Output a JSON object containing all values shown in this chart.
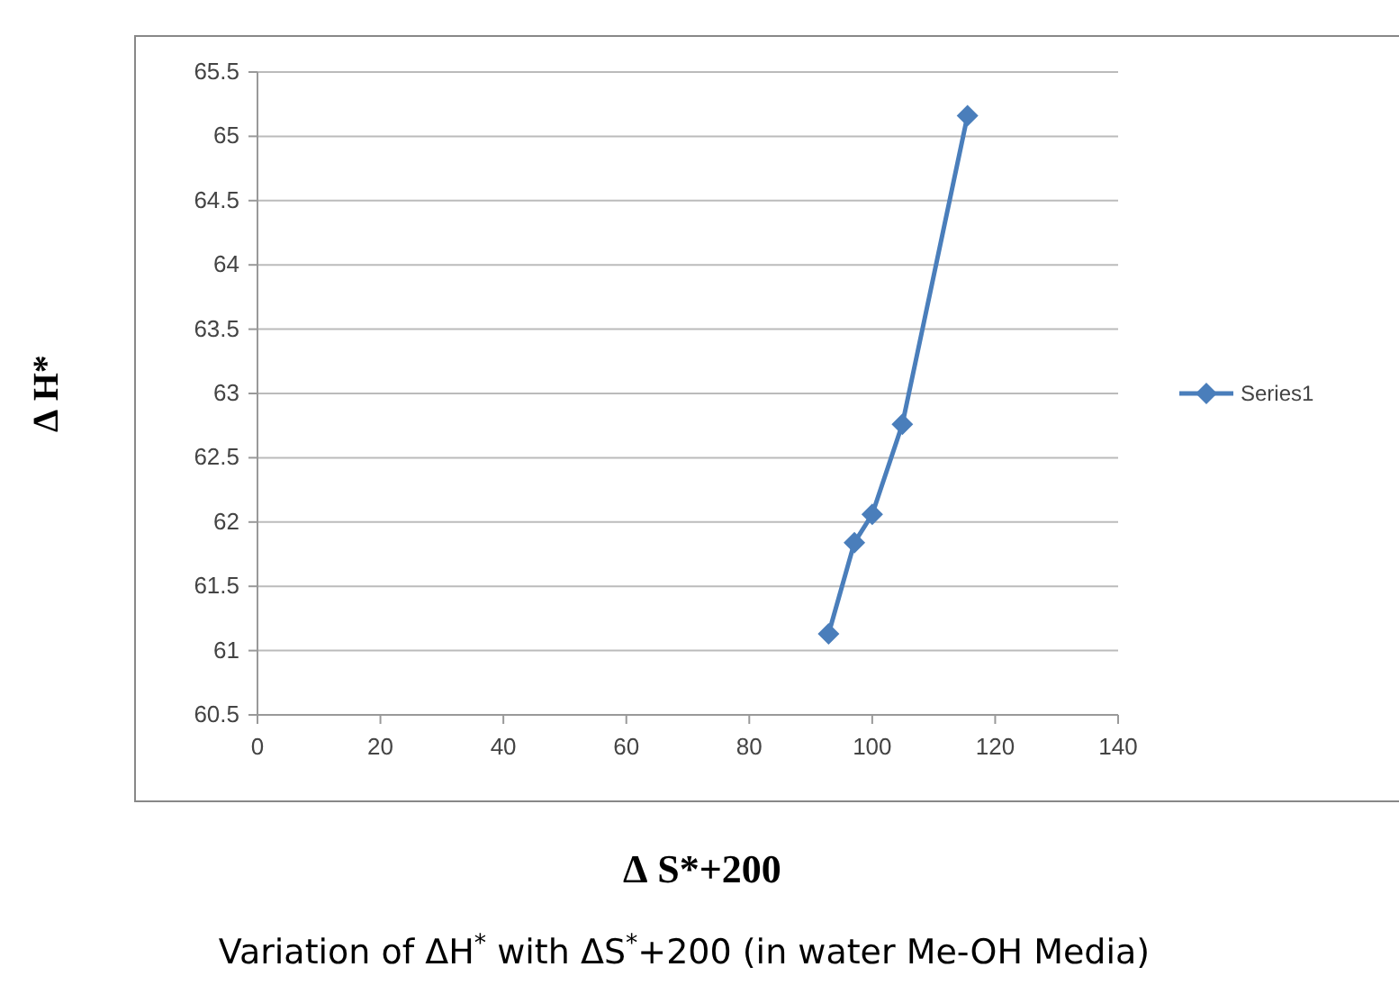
{
  "chart_data": {
    "type": "line",
    "title": "Variation of ΔH$^{*}$ with ΔS$^{*}$+200 (in water Me-OH Media)",
    "xlabel": "∆ S*+200",
    "ylabel": "∆ H*",
    "x": [
      92.9,
      97.1,
      100,
      104.9,
      115.5
    ],
    "series": [
      {
        "name": "Series1",
        "color": "#4a7ebb",
        "values": [
          61.13,
          61.84,
          62.06,
          62.76,
          65.16
        ]
      }
    ],
    "xlim": [
      0,
      140
    ],
    "xticks": [
      0,
      20,
      40,
      60,
      80,
      100,
      120,
      140
    ],
    "ylim": [
      60.5,
      65.5
    ],
    "yticks": [
      60.5,
      61,
      61.5,
      62,
      62.5,
      63,
      63.5,
      64,
      64.5,
      65,
      65.5
    ],
    "grid": "y",
    "legend": "right",
    "marker": "diamond",
    "line_style": "solid"
  }
}
